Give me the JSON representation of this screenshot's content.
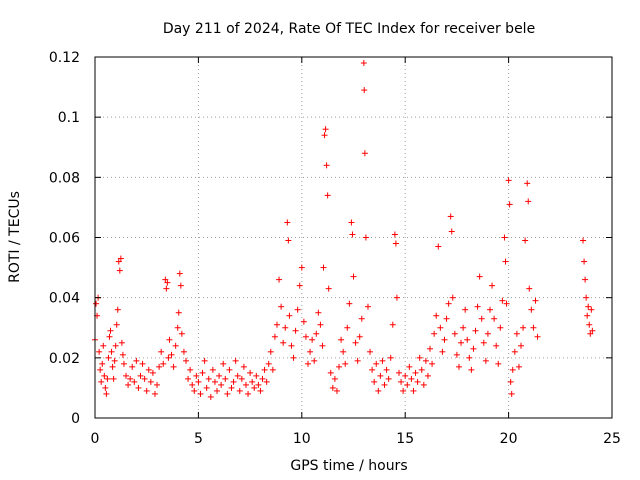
{
  "chart_data": {
    "type": "scatter",
    "title": "Day 211 of 2024, Rate Of TEC Index for receiver bele",
    "xlabel": "GPS time / hours",
    "ylabel": "ROTI / TECUs",
    "xlim": [
      0,
      25
    ],
    "ylim": [
      0,
      0.12
    ],
    "x_ticks": [
      0,
      5,
      10,
      15,
      20,
      25
    ],
    "y_ticks": [
      0,
      0.02,
      0.04,
      0.06,
      0.08,
      0.1,
      0.12
    ],
    "x_tick_labels": [
      "0",
      "5",
      "10",
      "15",
      "20",
      "25"
    ],
    "y_tick_labels": [
      "0",
      "0.02",
      "0.04",
      "0.06",
      "0.08",
      "0.1",
      "0.12"
    ],
    "grid": true,
    "legend": "none",
    "marker": "plus",
    "color": "#ff0000",
    "series": [
      {
        "points": [
          [
            0.0,
            0.026
          ],
          [
            0.05,
            0.038
          ],
          [
            0.1,
            0.034
          ],
          [
            0.15,
            0.04
          ],
          [
            0.2,
            0.022
          ],
          [
            0.25,
            0.016
          ],
          [
            0.3,
            0.012
          ],
          [
            0.35,
            0.018
          ],
          [
            0.4,
            0.024
          ],
          [
            0.45,
            0.014
          ],
          [
            0.5,
            0.01
          ],
          [
            0.55,
            0.008
          ],
          [
            0.6,
            0.013
          ],
          [
            0.65,
            0.02
          ],
          [
            0.7,
            0.027
          ],
          [
            0.75,
            0.029
          ],
          [
            0.8,
            0.022
          ],
          [
            0.85,
            0.017
          ],
          [
            0.9,
            0.013
          ],
          [
            0.95,
            0.019
          ],
          [
            1.0,
            0.024
          ],
          [
            1.05,
            0.031
          ],
          [
            1.1,
            0.036
          ],
          [
            1.15,
            0.052
          ],
          [
            1.2,
            0.049
          ],
          [
            1.25,
            0.053
          ],
          [
            1.3,
            0.025
          ],
          [
            1.35,
            0.021
          ],
          [
            1.4,
            0.018
          ],
          [
            1.5,
            0.014
          ],
          [
            1.6,
            0.011
          ],
          [
            1.7,
            0.013
          ],
          [
            1.8,
            0.017
          ],
          [
            1.9,
            0.012
          ],
          [
            2.0,
            0.019
          ],
          [
            2.1,
            0.01
          ],
          [
            2.2,
            0.014
          ],
          [
            2.3,
            0.018
          ],
          [
            2.4,
            0.013
          ],
          [
            2.5,
            0.009
          ],
          [
            2.6,
            0.016
          ],
          [
            2.7,
            0.012
          ],
          [
            2.8,
            0.015
          ],
          [
            2.9,
            0.008
          ],
          [
            3.0,
            0.011
          ],
          [
            3.1,
            0.017
          ],
          [
            3.2,
            0.022
          ],
          [
            3.3,
            0.018
          ],
          [
            3.4,
            0.046
          ],
          [
            3.45,
            0.043
          ],
          [
            3.5,
            0.045
          ],
          [
            3.55,
            0.02
          ],
          [
            3.6,
            0.026
          ],
          [
            3.7,
            0.021
          ],
          [
            3.8,
            0.017
          ],
          [
            3.9,
            0.024
          ],
          [
            4.0,
            0.03
          ],
          [
            4.05,
            0.035
          ],
          [
            4.1,
            0.048
          ],
          [
            4.15,
            0.044
          ],
          [
            4.2,
            0.028
          ],
          [
            4.3,
            0.022
          ],
          [
            4.4,
            0.019
          ],
          [
            4.5,
            0.013
          ],
          [
            4.6,
            0.016
          ],
          [
            4.7,
            0.011
          ],
          [
            4.8,
            0.009
          ],
          [
            4.9,
            0.014
          ],
          [
            5.0,
            0.012
          ],
          [
            5.1,
            0.008
          ],
          [
            5.2,
            0.015
          ],
          [
            5.3,
            0.019
          ],
          [
            5.4,
            0.01
          ],
          [
            5.5,
            0.013
          ],
          [
            5.6,
            0.007
          ],
          [
            5.7,
            0.016
          ],
          [
            5.8,
            0.012
          ],
          [
            5.9,
            0.009
          ],
          [
            6.0,
            0.014
          ],
          [
            6.1,
            0.011
          ],
          [
            6.2,
            0.018
          ],
          [
            6.3,
            0.013
          ],
          [
            6.4,
            0.008
          ],
          [
            6.5,
            0.016
          ],
          [
            6.6,
            0.01
          ],
          [
            6.7,
            0.012
          ],
          [
            6.8,
            0.019
          ],
          [
            6.9,
            0.014
          ],
          [
            7.0,
            0.009
          ],
          [
            7.1,
            0.013
          ],
          [
            7.2,
            0.017
          ],
          [
            7.3,
            0.011
          ],
          [
            7.4,
            0.008
          ],
          [
            7.5,
            0.015
          ],
          [
            7.6,
            0.012
          ],
          [
            7.7,
            0.01
          ],
          [
            7.8,
            0.014
          ],
          [
            7.9,
            0.011
          ],
          [
            8.0,
            0.009
          ],
          [
            8.1,
            0.013
          ],
          [
            8.2,
            0.016
          ],
          [
            8.3,
            0.012
          ],
          [
            8.4,
            0.018
          ],
          [
            8.5,
            0.022
          ],
          [
            8.6,
            0.016
          ],
          [
            8.7,
            0.027
          ],
          [
            8.8,
            0.031
          ],
          [
            8.9,
            0.046
          ],
          [
            9.0,
            0.037
          ],
          [
            9.1,
            0.025
          ],
          [
            9.2,
            0.03
          ],
          [
            9.3,
            0.065
          ],
          [
            9.35,
            0.059
          ],
          [
            9.4,
            0.034
          ],
          [
            9.5,
            0.024
          ],
          [
            9.6,
            0.02
          ],
          [
            9.7,
            0.029
          ],
          [
            9.8,
            0.036
          ],
          [
            9.9,
            0.044
          ],
          [
            10.0,
            0.05
          ],
          [
            10.1,
            0.032
          ],
          [
            10.2,
            0.027
          ],
          [
            10.3,
            0.018
          ],
          [
            10.4,
            0.022
          ],
          [
            10.5,
            0.026
          ],
          [
            10.6,
            0.019
          ],
          [
            10.7,
            0.028
          ],
          [
            10.8,
            0.035
          ],
          [
            10.9,
            0.031
          ],
          [
            11.0,
            0.024
          ],
          [
            11.05,
            0.05
          ],
          [
            11.1,
            0.094
          ],
          [
            11.15,
            0.096
          ],
          [
            11.2,
            0.084
          ],
          [
            11.25,
            0.074
          ],
          [
            11.3,
            0.043
          ],
          [
            11.4,
            0.015
          ],
          [
            11.5,
            0.01
          ],
          [
            11.6,
            0.013
          ],
          [
            11.7,
            0.009
          ],
          [
            11.8,
            0.017
          ],
          [
            11.9,
            0.026
          ],
          [
            12.0,
            0.022
          ],
          [
            12.1,
            0.018
          ],
          [
            12.2,
            0.03
          ],
          [
            12.3,
            0.038
          ],
          [
            12.4,
            0.065
          ],
          [
            12.45,
            0.061
          ],
          [
            12.5,
            0.047
          ],
          [
            12.6,
            0.025
          ],
          [
            12.7,
            0.019
          ],
          [
            12.8,
            0.027
          ],
          [
            12.9,
            0.033
          ],
          [
            13.0,
            0.118
          ],
          [
            13.02,
            0.109
          ],
          [
            13.05,
            0.088
          ],
          [
            13.1,
            0.06
          ],
          [
            13.2,
            0.037
          ],
          [
            13.3,
            0.022
          ],
          [
            13.4,
            0.016
          ],
          [
            13.5,
            0.012
          ],
          [
            13.6,
            0.018
          ],
          [
            13.7,
            0.009
          ],
          [
            13.8,
            0.014
          ],
          [
            13.9,
            0.019
          ],
          [
            14.0,
            0.011
          ],
          [
            14.1,
            0.016
          ],
          [
            14.2,
            0.013
          ],
          [
            14.3,
            0.02
          ],
          [
            14.4,
            0.031
          ],
          [
            14.5,
            0.061
          ],
          [
            14.55,
            0.058
          ],
          [
            14.6,
            0.04
          ],
          [
            14.7,
            0.015
          ],
          [
            14.8,
            0.012
          ],
          [
            14.9,
            0.009
          ],
          [
            15.0,
            0.014
          ],
          [
            15.1,
            0.011
          ],
          [
            15.2,
            0.017
          ],
          [
            15.3,
            0.013
          ],
          [
            15.4,
            0.009
          ],
          [
            15.5,
            0.015
          ],
          [
            15.6,
            0.012
          ],
          [
            15.7,
            0.02
          ],
          [
            15.8,
            0.016
          ],
          [
            15.9,
            0.011
          ],
          [
            16.0,
            0.019
          ],
          [
            16.1,
            0.014
          ],
          [
            16.2,
            0.023
          ],
          [
            16.3,
            0.018
          ],
          [
            16.4,
            0.028
          ],
          [
            16.5,
            0.034
          ],
          [
            16.6,
            0.057
          ],
          [
            16.7,
            0.03
          ],
          [
            16.8,
            0.022
          ],
          [
            16.9,
            0.026
          ],
          [
            17.0,
            0.033
          ],
          [
            17.1,
            0.038
          ],
          [
            17.2,
            0.067
          ],
          [
            17.25,
            0.062
          ],
          [
            17.3,
            0.04
          ],
          [
            17.4,
            0.028
          ],
          [
            17.5,
            0.021
          ],
          [
            17.6,
            0.017
          ],
          [
            17.7,
            0.025
          ],
          [
            17.8,
            0.03
          ],
          [
            17.9,
            0.036
          ],
          [
            18.0,
            0.026
          ],
          [
            18.1,
            0.02
          ],
          [
            18.2,
            0.016
          ],
          [
            18.3,
            0.023
          ],
          [
            18.4,
            0.029
          ],
          [
            18.5,
            0.037
          ],
          [
            18.6,
            0.047
          ],
          [
            18.7,
            0.033
          ],
          [
            18.8,
            0.025
          ],
          [
            18.9,
            0.019
          ],
          [
            19.0,
            0.028
          ],
          [
            19.1,
            0.036
          ],
          [
            19.2,
            0.044
          ],
          [
            19.3,
            0.033
          ],
          [
            19.4,
            0.024
          ],
          [
            19.5,
            0.018
          ],
          [
            19.6,
            0.03
          ],
          [
            19.7,
            0.039
          ],
          [
            19.8,
            0.06
          ],
          [
            19.85,
            0.052
          ],
          [
            19.9,
            0.038
          ],
          [
            20.0,
            0.079
          ],
          [
            20.05,
            0.071
          ],
          [
            20.1,
            0.012
          ],
          [
            20.15,
            0.008
          ],
          [
            20.2,
            0.016
          ],
          [
            20.3,
            0.022
          ],
          [
            20.4,
            0.028
          ],
          [
            20.5,
            0.017
          ],
          [
            20.6,
            0.024
          ],
          [
            20.7,
            0.03
          ],
          [
            20.8,
            0.059
          ],
          [
            20.9,
            0.078
          ],
          [
            20.95,
            0.072
          ],
          [
            21.0,
            0.043
          ],
          [
            21.1,
            0.036
          ],
          [
            21.2,
            0.03
          ],
          [
            21.3,
            0.039
          ],
          [
            21.4,
            0.027
          ],
          [
            23.6,
            0.059
          ],
          [
            23.65,
            0.052
          ],
          [
            23.7,
            0.046
          ],
          [
            23.75,
            0.04
          ],
          [
            23.8,
            0.034
          ],
          [
            23.85,
            0.037
          ],
          [
            23.9,
            0.031
          ],
          [
            23.95,
            0.028
          ],
          [
            24.0,
            0.036
          ],
          [
            24.05,
            0.029
          ]
        ]
      }
    ]
  }
}
